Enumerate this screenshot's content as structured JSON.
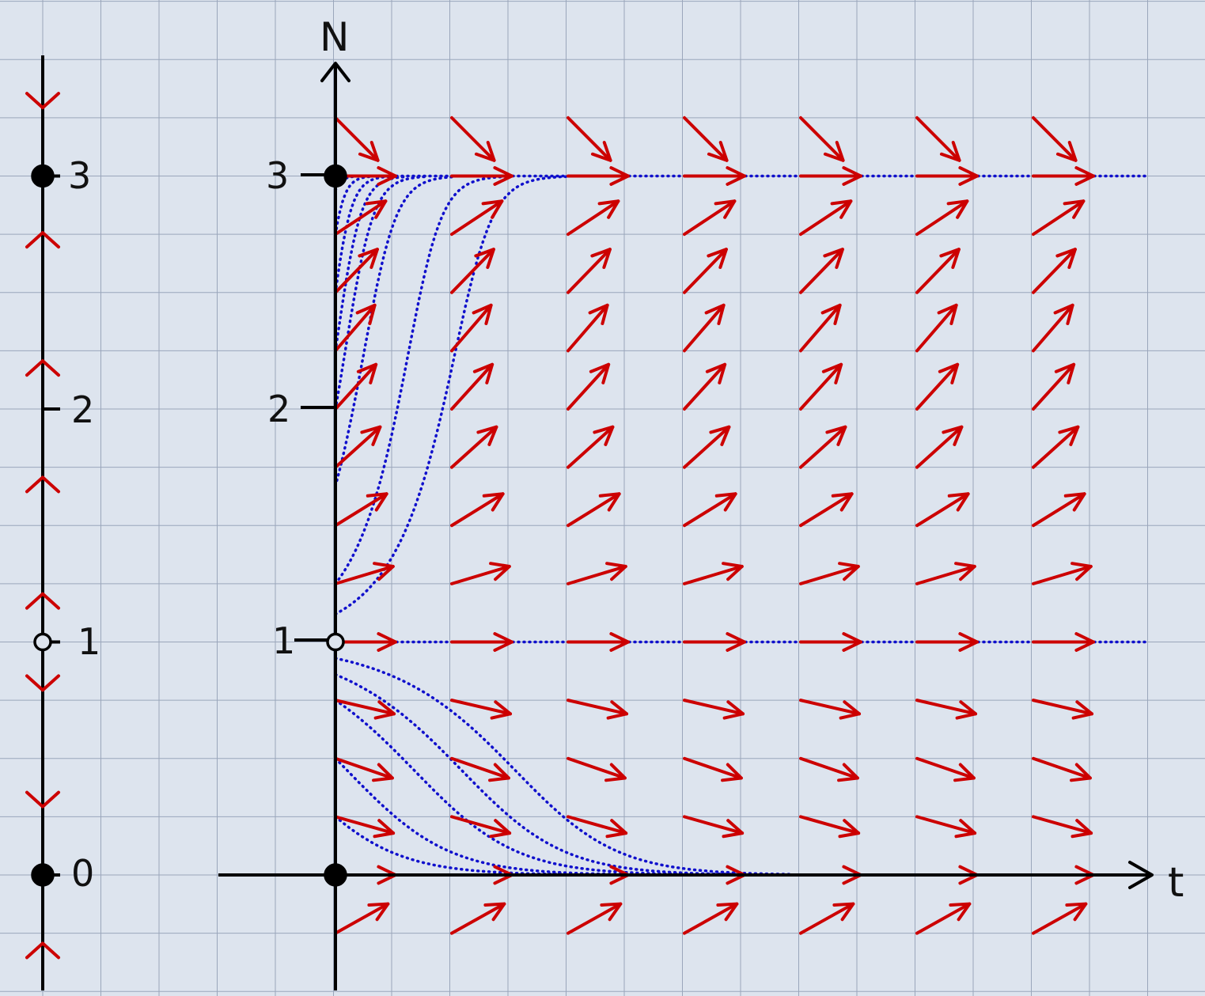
{
  "colors": {
    "background": "#dde4ee",
    "grid": "#9aa6bb",
    "axis": "#000000",
    "arrow": "#cc0000",
    "solution": "#1010cc"
  },
  "phase_line": {
    "labels": [
      "3",
      "2",
      "1",
      "0"
    ],
    "equilibria": [
      {
        "N": 3,
        "label": "3",
        "type": "stable"
      },
      {
        "N": 1,
        "label": "1",
        "type": "unstable"
      },
      {
        "N": 0,
        "label": "0",
        "type": "stable"
      }
    ],
    "tick_marks": [
      {
        "N": 2,
        "label": "2"
      }
    ],
    "flow": [
      {
        "N": 3.3,
        "dir": "down"
      },
      {
        "N": 2.75,
        "dir": "up"
      },
      {
        "N": 2.2,
        "dir": "up"
      },
      {
        "N": 1.7,
        "dir": "up"
      },
      {
        "N": 1.2,
        "dir": "up"
      },
      {
        "N": 0.8,
        "dir": "down"
      },
      {
        "N": 0.3,
        "dir": "down"
      },
      {
        "N": -0.3,
        "dir": "up"
      }
    ]
  },
  "direction_field": {
    "x_axis_label": "t",
    "y_axis_label": "N",
    "y_tick_labels": [
      {
        "N": 3,
        "label": "3"
      },
      {
        "N": 2,
        "label": "2"
      },
      {
        "N": 1,
        "label": "1"
      }
    ],
    "equilibria": [
      {
        "N": 3,
        "type": "stable"
      },
      {
        "N": 1,
        "type": "unstable"
      },
      {
        "N": 0,
        "type": "stable"
      }
    ],
    "arrow_columns": 7,
    "arrow_rows_N": [
      3.25,
      3,
      2.75,
      2.5,
      2.25,
      2,
      1.75,
      1.5,
      1.25,
      1,
      0.75,
      0.5,
      0.25,
      0,
      -0.25
    ],
    "slope_field": "dN/dt sign: + for N<0, - for 0<N<1, + for 1<N<3, - for N>3",
    "solution_curves": {
      "rising_initial_N": [
        2.94,
        2.75,
        2.5,
        2.25,
        2.0,
        1.67,
        1.25,
        1.12
      ],
      "falling_initial_N": [
        0.93,
        0.86,
        0.75,
        0.5,
        0.25
      ]
    }
  }
}
